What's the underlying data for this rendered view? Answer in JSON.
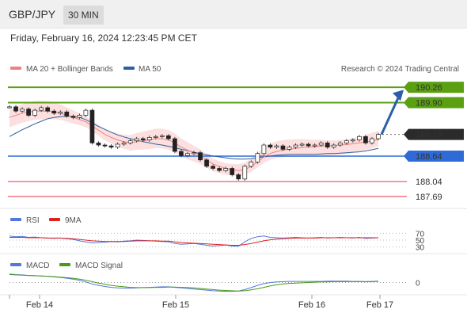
{
  "header": {
    "symbol": "GBP/JPY",
    "interval": "30 MIN"
  },
  "timestamp": "Friday, February 16, 2024 12:23:45 PM CET",
  "legend": {
    "ma20_label": "MA 20 + Bollinger Bands",
    "ma50_label": "MA 50",
    "ma20_color": "#f08080",
    "ma50_color": "#2e5f9e",
    "credit": "Research © 2024 Trading Central"
  },
  "chart_data": {
    "type": "line",
    "title": "",
    "instrument": "GBP/JPY",
    "interval": "30 MIN",
    "ylim": [
      187.5,
      190.45
    ],
    "x_ticks": [
      "Feb 14",
      "Feb 15",
      "Feb 16",
      "Feb 17"
    ],
    "levels": [
      {
        "value": 190.26,
        "label": "190.26",
        "color": "#5aa012",
        "kind": "resistance"
      },
      {
        "value": 189.9,
        "label": "189.90",
        "color": "#5aa012",
        "kind": "resistance"
      },
      {
        "value": 189.15,
        "label": "189.15",
        "color": "#2b2b2b",
        "kind": "last-price"
      },
      {
        "value": 188.64,
        "label": "188.64",
        "color": "#2f6bd6",
        "kind": "pivot"
      },
      {
        "value": 188.04,
        "label": "188.04",
        "color": "#e8334a",
        "kind": "support"
      },
      {
        "value": 187.69,
        "label": "187.69",
        "color": "#e8334a",
        "kind": "support"
      }
    ],
    "price_series": {
      "name": "",
      "x": [
        0,
        2,
        4,
        6,
        8,
        10,
        12,
        14,
        16,
        18,
        20,
        22,
        24,
        26,
        28,
        30,
        32,
        34,
        36,
        38,
        40,
        42,
        44,
        46,
        48,
        50,
        52,
        54,
        56,
        58,
        60,
        62,
        64,
        66,
        68,
        70,
        72,
        74,
        76,
        78,
        80,
        82,
        84,
        86,
        88,
        90,
        92,
        94,
        96,
        98,
        100,
        102,
        104,
        106,
        108,
        110,
        112,
        114,
        116
      ],
      "values": [
        189.8,
        189.7,
        189.75,
        189.6,
        189.72,
        189.78,
        189.7,
        189.65,
        189.68,
        189.58,
        189.55,
        189.6,
        189.72,
        188.95,
        188.9,
        188.88,
        188.85,
        188.92,
        188.95,
        189.0,
        189.05,
        189.02,
        189.08,
        189.1,
        189.12,
        189.05,
        188.75,
        188.65,
        188.7,
        188.72,
        188.55,
        188.4,
        188.35,
        188.3,
        188.35,
        188.2,
        188.1,
        188.4,
        188.5,
        188.7,
        188.9,
        188.85,
        188.88,
        188.8,
        188.85,
        188.9,
        188.92,
        188.88,
        188.9,
        188.95,
        188.85,
        188.9,
        188.95,
        189.0,
        189.02,
        189.1,
        188.95,
        189.05,
        189.15
      ]
    },
    "ma20": {
      "name": "MA 20",
      "values": [
        189.55,
        189.6,
        189.65,
        189.68,
        189.7,
        189.7,
        189.7,
        189.68,
        189.65,
        189.6,
        189.55,
        189.5,
        189.45,
        189.35,
        189.25,
        189.15,
        189.08,
        189.02,
        188.98,
        188.95,
        188.98,
        189.0,
        189.02,
        189.05,
        189.05,
        189.02,
        188.95,
        188.85,
        188.78,
        188.72,
        188.65,
        188.55,
        188.45,
        188.4,
        188.35,
        188.32,
        188.3,
        188.32,
        188.4,
        188.5,
        188.62,
        188.7,
        188.75,
        188.78,
        188.8,
        188.82,
        188.84,
        188.85,
        188.86,
        188.88,
        188.88,
        188.89,
        188.9,
        188.91,
        188.93,
        188.95,
        188.97,
        189.0,
        189.03
      ]
    },
    "ma50": {
      "name": "MA 50",
      "values": [
        189.1,
        189.18,
        189.26,
        189.33,
        189.4,
        189.46,
        189.52,
        189.55,
        189.57,
        189.58,
        189.57,
        189.55,
        189.5,
        189.42,
        189.34,
        189.27,
        189.2,
        189.14,
        189.09,
        189.05,
        189.01,
        188.98,
        188.95,
        188.92,
        188.9,
        188.87,
        188.84,
        188.8,
        188.77,
        188.73,
        188.7,
        188.67,
        188.64,
        188.62,
        188.6,
        188.58,
        188.57,
        188.57,
        188.58,
        188.6,
        188.62,
        188.64,
        188.66,
        188.67,
        188.68,
        188.68,
        188.68,
        188.68,
        188.68,
        188.69,
        188.7,
        188.7,
        188.71,
        188.72,
        188.73,
        188.74,
        188.76,
        188.79,
        188.82
      ]
    },
    "forecast_arrow": {
      "from_value": 189.15,
      "to_value": 190.2
    },
    "rsi": {
      "title": "RSI",
      "signal_name": "9MA",
      "rsi_color": "#5577dd",
      "signal_color": "#dd2222",
      "levels": [
        70,
        50,
        30
      ],
      "level_labels": [
        "70",
        "50",
        "30"
      ],
      "values": [
        62,
        60,
        61,
        58,
        59,
        57,
        56,
        55,
        56,
        54,
        52,
        48,
        45,
        42,
        43,
        44,
        46,
        45,
        47,
        48,
        50,
        49,
        48,
        47,
        46,
        45,
        40,
        38,
        39,
        40,
        38,
        35,
        33,
        34,
        36,
        33,
        32,
        45,
        55,
        60,
        62,
        58,
        57,
        56,
        57,
        58,
        57,
        56,
        57,
        58,
        56,
        57,
        58,
        57,
        56,
        58,
        55,
        56,
        57
      ],
      "signal_values": [
        58,
        58,
        58,
        57,
        57,
        57,
        56,
        56,
        56,
        55,
        54,
        52,
        50,
        48,
        47,
        46,
        46,
        46,
        46,
        47,
        48,
        48,
        48,
        48,
        47,
        47,
        45,
        43,
        42,
        41,
        40,
        39,
        38,
        37,
        36,
        35,
        35,
        37,
        40,
        44,
        48,
        51,
        53,
        54,
        55,
        56,
        56,
        56,
        56,
        57,
        57,
        57,
        57,
        57,
        57,
        57,
        57,
        57,
        57
      ]
    },
    "macd": {
      "title": "MACD",
      "signal_name": "MACD Signal",
      "macd_color": "#5577dd",
      "signal_color": "#4a9a18",
      "zero_label": "0",
      "values": [
        0.3,
        0.28,
        0.27,
        0.25,
        0.24,
        0.23,
        0.22,
        0.2,
        0.18,
        0.15,
        0.12,
        0.08,
        0.02,
        -0.05,
        -0.1,
        -0.14,
        -0.17,
        -0.19,
        -0.2,
        -0.2,
        -0.19,
        -0.18,
        -0.17,
        -0.16,
        -0.15,
        -0.15,
        -0.17,
        -0.19,
        -0.21,
        -0.23,
        -0.25,
        -0.27,
        -0.29,
        -0.3,
        -0.31,
        -0.31,
        -0.3,
        -0.25,
        -0.18,
        -0.1,
        -0.04,
        0.0,
        0.02,
        0.03,
        0.04,
        0.04,
        0.04,
        0.04,
        0.04,
        0.04,
        0.05,
        0.05,
        0.05,
        0.05,
        0.04,
        0.04,
        0.03,
        0.04,
        0.05
      ],
      "signal_values": [
        0.28,
        0.27,
        0.26,
        0.25,
        0.24,
        0.23,
        0.22,
        0.21,
        0.19,
        0.17,
        0.15,
        0.12,
        0.08,
        0.03,
        -0.02,
        -0.06,
        -0.1,
        -0.13,
        -0.15,
        -0.17,
        -0.18,
        -0.18,
        -0.18,
        -0.17,
        -0.17,
        -0.16,
        -0.16,
        -0.17,
        -0.18,
        -0.19,
        -0.21,
        -0.23,
        -0.25,
        -0.27,
        -0.28,
        -0.29,
        -0.3,
        -0.29,
        -0.26,
        -0.22,
        -0.17,
        -0.12,
        -0.08,
        -0.05,
        -0.03,
        -0.02,
        -0.01,
        0.0,
        0.01,
        0.02,
        0.02,
        0.03,
        0.03,
        0.03,
        0.03,
        0.03,
        0.03,
        0.03,
        0.04
      ]
    }
  }
}
